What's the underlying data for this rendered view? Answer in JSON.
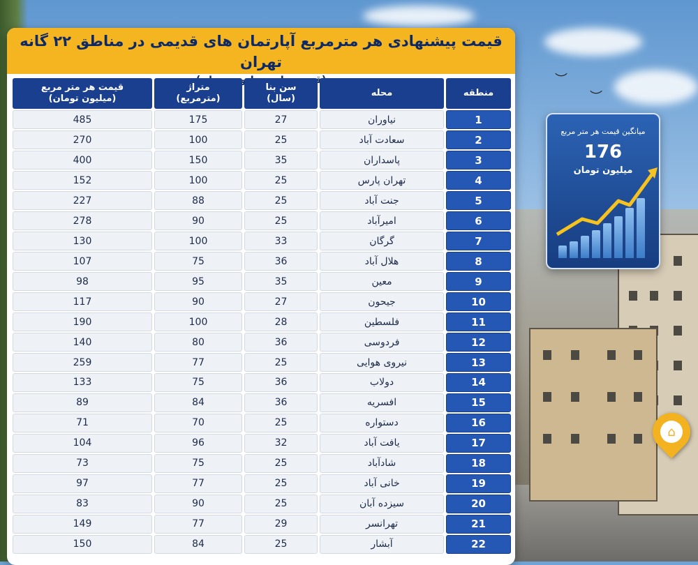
{
  "title": "قیمت پیشنهادی هر مترمربع آپارتمان های قدیمی در مناطق ۲۲ گانه تهران",
  "subtitle": "(قیمت ها به میلیون تومان)",
  "headers": {
    "price": [
      "قیمت هر متر مربع",
      "(میلیون تومان)"
    ],
    "area": [
      "متراژ",
      "(مترمربع)"
    ],
    "age": [
      "سن بنا",
      "(سال)"
    ],
    "neighborhood": "محله",
    "zone": "منطقه"
  },
  "rows": [
    {
      "zone": "1",
      "name": "نیاوران",
      "age": "27",
      "area": "175",
      "price": "485"
    },
    {
      "zone": "2",
      "name": "سعادت آباد",
      "age": "25",
      "area": "100",
      "price": "270"
    },
    {
      "zone": "3",
      "name": "پاسداران",
      "age": "35",
      "area": "150",
      "price": "400"
    },
    {
      "zone": "4",
      "name": "تهران پارس",
      "age": "25",
      "area": "100",
      "price": "152"
    },
    {
      "zone": "5",
      "name": "جنت آباد",
      "age": "25",
      "area": "88",
      "price": "227"
    },
    {
      "zone": "6",
      "name": "امیرآباد",
      "age": "25",
      "area": "90",
      "price": "278"
    },
    {
      "zone": "7",
      "name": "گرگان",
      "age": "33",
      "area": "100",
      "price": "130"
    },
    {
      "zone": "8",
      "name": "هلال آباد",
      "age": "36",
      "area": "75",
      "price": "107"
    },
    {
      "zone": "9",
      "name": "معین",
      "age": "35",
      "area": "95",
      "price": "98"
    },
    {
      "zone": "10",
      "name": "جیحون",
      "age": "27",
      "area": "90",
      "price": "117"
    },
    {
      "zone": "11",
      "name": "فلسطین",
      "age": "28",
      "area": "100",
      "price": "190"
    },
    {
      "zone": "12",
      "name": "فردوسی",
      "age": "36",
      "area": "80",
      "price": "140"
    },
    {
      "zone": "13",
      "name": "نیروی هوایی",
      "age": "25",
      "area": "77",
      "price": "259"
    },
    {
      "zone": "14",
      "name": "دولاب",
      "age": "36",
      "area": "75",
      "price": "133"
    },
    {
      "zone": "15",
      "name": "افسریه",
      "age": "36",
      "area": "84",
      "price": "89"
    },
    {
      "zone": "16",
      "name": "دستواره",
      "age": "25",
      "area": "70",
      "price": "71"
    },
    {
      "zone": "17",
      "name": "یافت آباد",
      "age": "32",
      "area": "96",
      "price": "104"
    },
    {
      "zone": "18",
      "name": "شادآباد",
      "age": "25",
      "area": "75",
      "price": "73"
    },
    {
      "zone": "19",
      "name": "خانی آباد",
      "age": "25",
      "area": "77",
      "price": "97"
    },
    {
      "zone": "20",
      "name": "سیزده آبان",
      "age": "25",
      "area": "90",
      "price": "83"
    },
    {
      "zone": "21",
      "name": "تهرانسر",
      "age": "29",
      "area": "77",
      "price": "149"
    },
    {
      "zone": "22",
      "name": "آبشار",
      "age": "25",
      "area": "84",
      "price": "150"
    }
  ],
  "average": {
    "label": "میانگین قیمت هر متر مربع",
    "value": "176",
    "unit": "میلیون تومان"
  },
  "colors": {
    "title_band": "#f5b521",
    "header": "#1b3f8f",
    "zone_cell": "#2557b4",
    "cell": "#eef1f6"
  },
  "icons": [
    "house-pin-icon",
    "trend-arrow-icon",
    "bird-icon"
  ]
}
